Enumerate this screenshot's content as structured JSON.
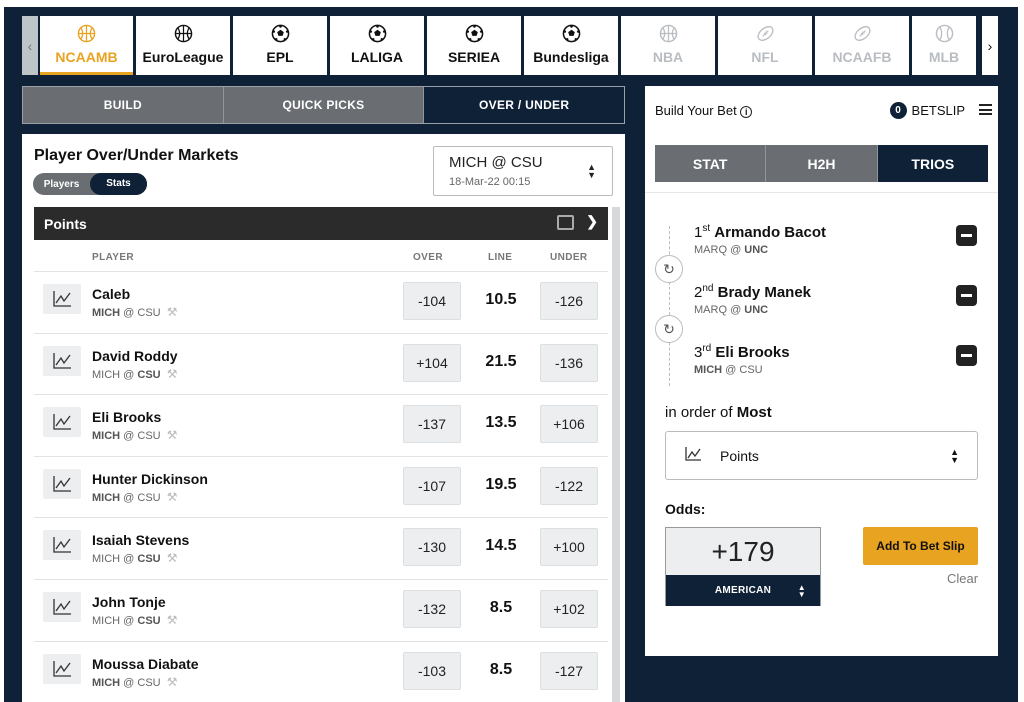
{
  "sports": [
    {
      "label": "NCAAMB",
      "icon": "basketball-icon",
      "state": "active"
    },
    {
      "label": "EuroLeague",
      "icon": "basketball-icon",
      "state": "normal"
    },
    {
      "label": "EPL",
      "icon": "soccer-ball-icon",
      "state": "normal"
    },
    {
      "label": "LALIGA",
      "icon": "soccer-ball-icon",
      "state": "normal"
    },
    {
      "label": "SERIEA",
      "icon": "soccer-ball-icon",
      "state": "normal"
    },
    {
      "label": "Bundesliga",
      "icon": "soccer-ball-icon",
      "state": "normal"
    },
    {
      "label": "NBA",
      "icon": "basketball-icon",
      "state": "disabled"
    },
    {
      "label": "NFL",
      "icon": "football-icon",
      "state": "disabled"
    },
    {
      "label": "NCAAFB",
      "icon": "football-icon",
      "state": "disabled"
    },
    {
      "label": "MLB",
      "icon": "baseball-icon",
      "state": "disabled"
    }
  ],
  "modes": [
    "BUILD",
    "QUICK PICKS",
    "OVER / UNDER"
  ],
  "active_mode": "OVER / UNDER",
  "market": {
    "title": "Player Over/Under Markets",
    "toggle": [
      "Players",
      "Stats"
    ],
    "toggle_selected": "Stats",
    "game": {
      "label": "MICH @ CSU",
      "datetime": "18-Mar-22 00:15"
    },
    "category": "Points",
    "columns": {
      "player": "PLAYER",
      "over": "OVER",
      "line": "LINE",
      "under": "UNDER"
    },
    "rows": [
      {
        "name": "Caleb",
        "away": "MICH",
        "at": "@",
        "home": "CSU",
        "bold_team": "away",
        "over": "-104",
        "line": "10.5",
        "under": "-126"
      },
      {
        "name": "David Roddy",
        "away": "MICH",
        "at": "@",
        "home": "CSU",
        "bold_team": "home",
        "over": "+104",
        "line": "21.5",
        "under": "-136"
      },
      {
        "name": "Eli Brooks",
        "away": "MICH",
        "at": "@",
        "home": "CSU",
        "bold_team": "away",
        "over": "-137",
        "line": "13.5",
        "under": "+106"
      },
      {
        "name": "Hunter Dickinson",
        "away": "MICH",
        "at": "@",
        "home": "CSU",
        "bold_team": "away",
        "over": "-107",
        "line": "19.5",
        "under": "-122"
      },
      {
        "name": "Isaiah Stevens",
        "away": "MICH",
        "at": "@",
        "home": "CSU",
        "bold_team": "home",
        "over": "-130",
        "line": "14.5",
        "under": "+100"
      },
      {
        "name": "John Tonje",
        "away": "MICH",
        "at": "@",
        "home": "CSU",
        "bold_team": "home",
        "over": "-132",
        "line": "8.5",
        "under": "+102"
      },
      {
        "name": "Moussa Diabate",
        "away": "MICH",
        "at": "@",
        "home": "CSU",
        "bold_team": "away",
        "over": "-103",
        "line": "8.5",
        "under": "-127"
      }
    ]
  },
  "builder": {
    "title": "Build Your Bet",
    "betslip_count": "0",
    "betslip_label": "BETSLIP",
    "tabs": [
      "STAT",
      "H2H",
      "TRIOS"
    ],
    "active_tab": "TRIOS",
    "picks": [
      {
        "rank": "1",
        "suffix": "st",
        "name": "Armando Bacot",
        "away": "MARQ",
        "at": "@",
        "home": "UNC",
        "bold_team": "home"
      },
      {
        "rank": "2",
        "suffix": "nd",
        "name": "Brady Manek",
        "away": "MARQ",
        "at": "@",
        "home": "UNC",
        "bold_team": "home"
      },
      {
        "rank": "3",
        "suffix": "rd",
        "name": "Eli Brooks",
        "away": "MICH",
        "at": "@",
        "home": "CSU",
        "bold_team": "away"
      }
    ],
    "order_prefix": "in order of",
    "order_value": "Most",
    "stat": "Points",
    "odds_label": "Odds:",
    "odds_value": "+179",
    "odds_format": "AMERICAN",
    "add_button": "Add To Bet Slip",
    "clear": "Clear"
  },
  "colors": {
    "navy": "#0f2137",
    "accent": "#e8a321",
    "tab_grey": "#6a6e73"
  }
}
